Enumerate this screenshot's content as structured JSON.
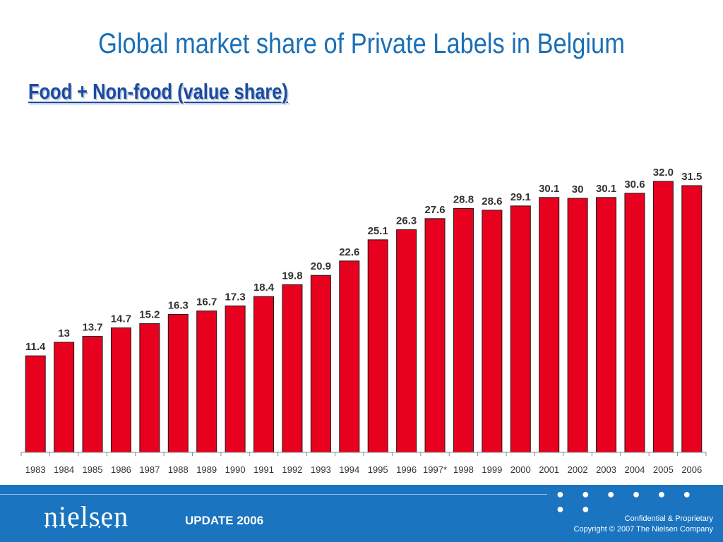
{
  "header": {
    "title": "Global market share of Private Labels in Belgium",
    "subtitle": "Food + Non-food (value share)"
  },
  "footer": {
    "logo": "nielsen",
    "logo_dots": "•••••••••",
    "update": "UPDATE 2006",
    "confidential": "Confidential & Proprietary",
    "copyright": "Copyright © 2007 The Nielsen Company",
    "dots": "● ● ● ● ● ● ● ●"
  },
  "colors": {
    "bar": "#e8001f",
    "title": "#1a6fb5",
    "subtitle": "#1b4aa0",
    "footer": "#1a74bf"
  },
  "chart_data": {
    "type": "bar",
    "title": "Global market share of Private Labels in Belgium",
    "subtitle": "Food + Non-food (value share)",
    "categories": [
      "1983",
      "1984",
      "1985",
      "1986",
      "1987",
      "1988",
      "1989",
      "1990",
      "1991",
      "1992",
      "1993",
      "1994",
      "1995",
      "1996",
      "1997*",
      "1998",
      "1999",
      "2000",
      "2001",
      "2002",
      "2003",
      "2004",
      "2005",
      "2006"
    ],
    "values": [
      11.4,
      13,
      13.7,
      14.7,
      15.2,
      16.3,
      16.7,
      17.3,
      18.4,
      19.8,
      20.9,
      22.6,
      25.1,
      26.3,
      27.6,
      28.8,
      28.6,
      29.1,
      30.1,
      30,
      30.1,
      30.6,
      32.0,
      31.5
    ],
    "labels": [
      "11.4",
      "13",
      "13.7",
      "14.7",
      "15.2",
      "16.3",
      "16.7",
      "17.3",
      "18.4",
      "19.8",
      "20.9",
      "22.6",
      "25.1",
      "26.3",
      "27.6",
      "28.8",
      "28.6",
      "29.1",
      "30.1",
      "30",
      "30.1",
      "30.6",
      "32.0",
      "31.5"
    ],
    "ylim": [
      0,
      34
    ],
    "grid": false,
    "legend": "none"
  }
}
